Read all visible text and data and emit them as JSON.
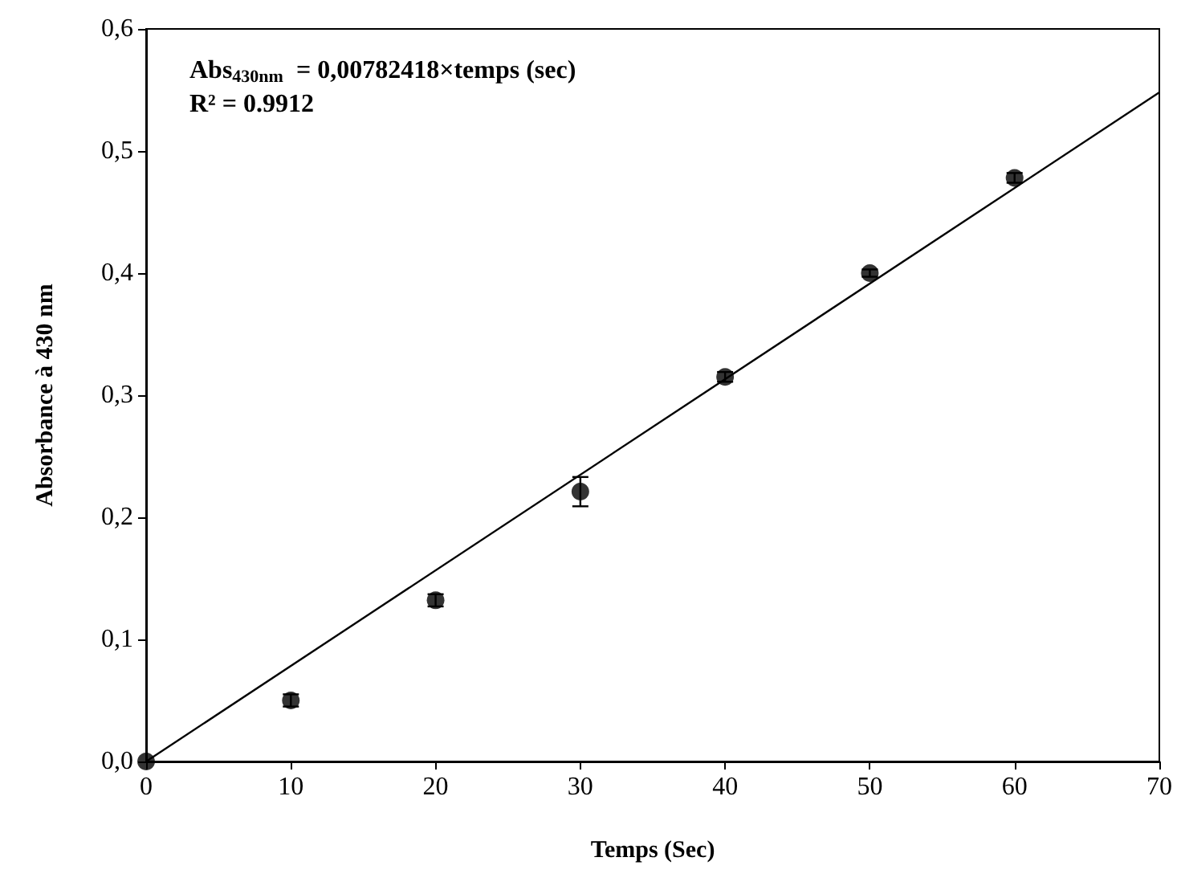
{
  "chart_data": {
    "type": "scatter",
    "xlabel": "Temps (Sec)",
    "ylabel": "Absorbance à 430 nm",
    "annotations": [
      "Abs$_{430nm}$  = 0,00782418×temps (sec)",
      "R² = 0.9912"
    ],
    "series": [
      {
        "color": "#000000",
        "marker": "circle",
        "x": [
          0,
          10,
          20,
          30,
          40,
          50,
          60
        ],
        "values": [
          0.0,
          0.05,
          0.132,
          0.221,
          0.315,
          0.4,
          0.478
        ],
        "errors": [
          null,
          0.005,
          0.005,
          0.012,
          0.004,
          0.003,
          0.004
        ]
      },
      {
        "type": "line",
        "color": "#000000",
        "marker": "none",
        "line_style": "solid",
        "x": [
          0,
          70
        ],
        "values": [
          0,
          0.548
        ]
      }
    ],
    "xlim": [
      0,
      70
    ],
    "xticks": [
      0,
      10,
      20,
      30,
      40,
      50,
      60,
      70
    ],
    "ylim": [
      0,
      0.6
    ],
    "yticks": [
      {
        "value": 0,
        "label": "0,0"
      },
      {
        "value": 0.1,
        "label": "0,1"
      },
      {
        "value": 0.2,
        "label": "0,2"
      },
      {
        "value": 0.3,
        "label": "0,3"
      },
      {
        "value": 0.4,
        "label": "0,4"
      },
      {
        "value": 0.5,
        "label": "0,5"
      },
      {
        "value": 0.6,
        "label": "0,6"
      }
    ],
    "grid": false
  }
}
